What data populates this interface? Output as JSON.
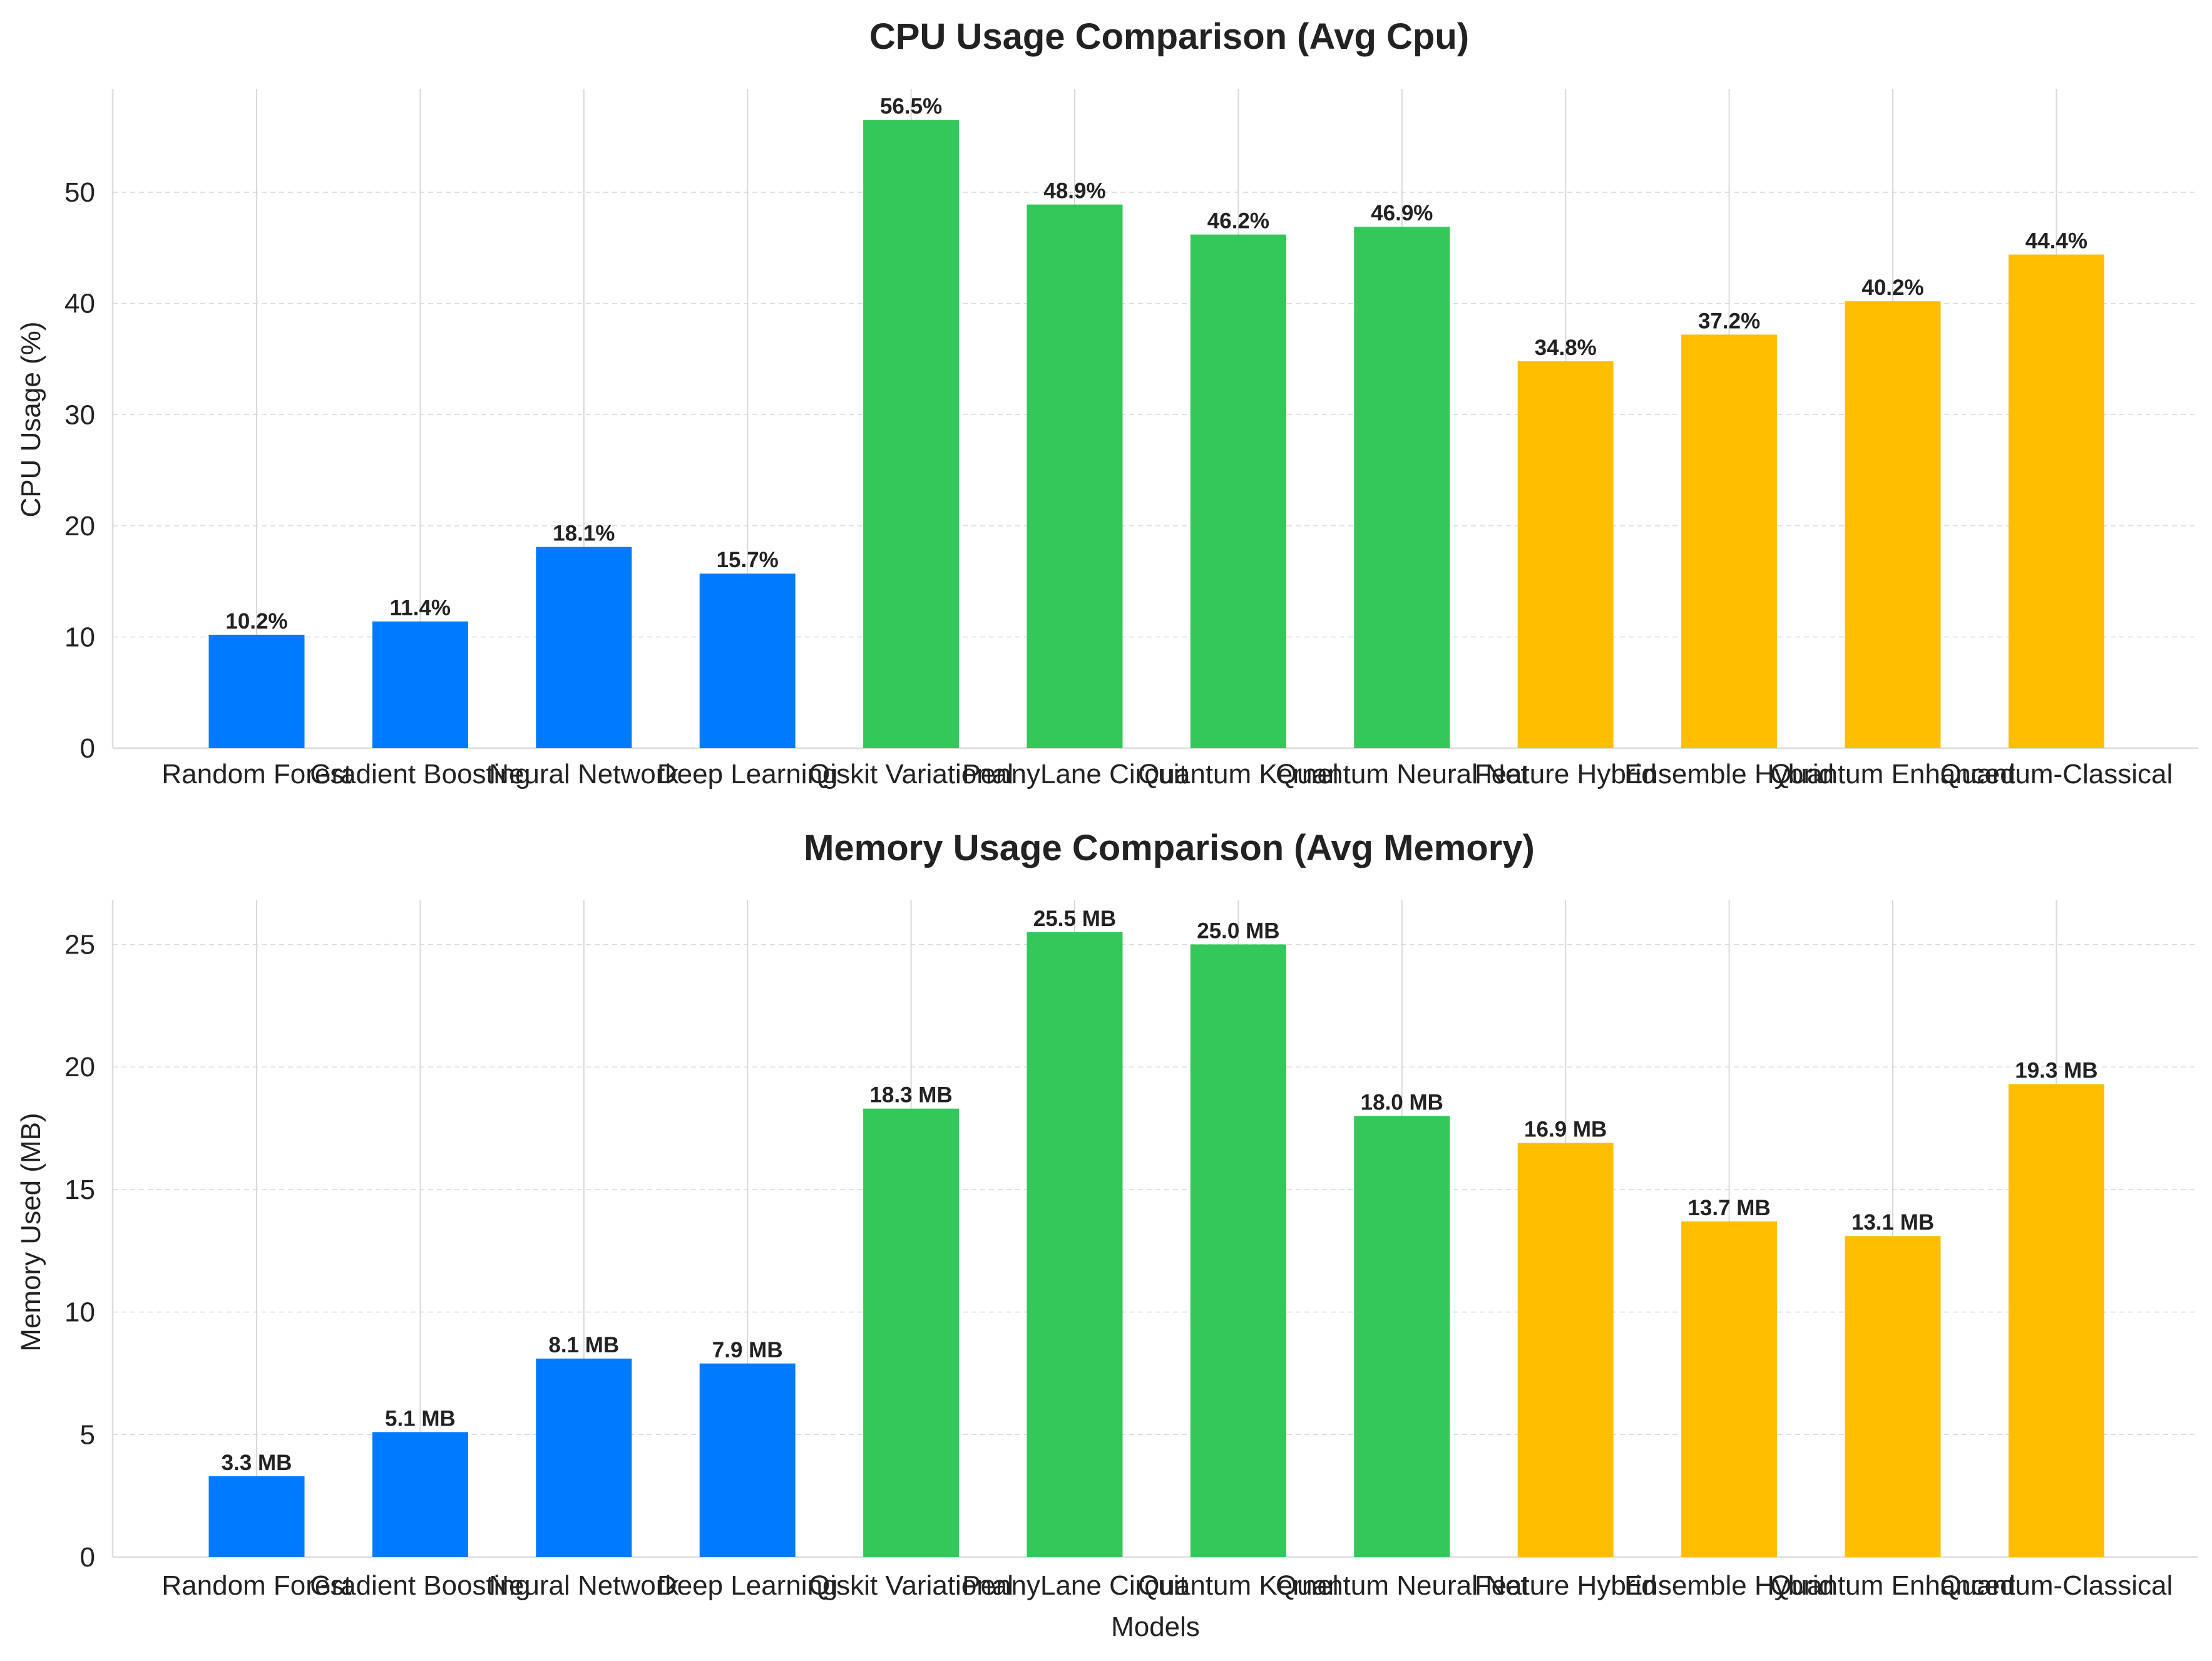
{
  "chart_data": [
    {
      "type": "bar",
      "title": "CPU Usage Comparison (Avg Cpu)",
      "xlabel": "",
      "ylabel": "CPU Usage (%)",
      "categories": [
        "Random Forest",
        "Gradient Boosting",
        "Neural Network",
        "Deep Learning",
        "Qiskit Variational",
        "PennyLane Circuit",
        "Quantum Kernel",
        "Quantum Neural Net",
        "Feature Hybrid",
        "Ensemble Hybrid",
        "Quantum Enhanced",
        "Quantum-Classical"
      ],
      "values": [
        10.2,
        11.4,
        18.1,
        15.7,
        56.5,
        48.9,
        46.2,
        46.9,
        34.8,
        37.2,
        40.2,
        44.4
      ],
      "data_labels": [
        "10.2%",
        "11.4%",
        "18.1%",
        "15.7%",
        "56.5%",
        "48.9%",
        "46.2%",
        "46.9%",
        "34.8%",
        "37.2%",
        "40.2%",
        "44.4%"
      ],
      "colors": [
        "#007bff",
        "#007bff",
        "#007bff",
        "#007bff",
        "#34c759",
        "#34c759",
        "#34c759",
        "#34c759",
        "#ffbf00",
        "#ffbf00",
        "#ffbf00",
        "#ffbf00"
      ],
      "ylim": [
        0,
        59.3
      ],
      "yticks": [
        0,
        10,
        20,
        30,
        40,
        50
      ],
      "grid": true
    },
    {
      "type": "bar",
      "title": "Memory Usage Comparison (Avg Memory)",
      "xlabel": "Models",
      "ylabel": "Memory Used (MB)",
      "categories": [
        "Random Forest",
        "Gradient Boosting",
        "Neural Network",
        "Deep Learning",
        "Qiskit Variational",
        "PennyLane Circuit",
        "Quantum Kernel",
        "Quantum Neural Net",
        "Feature Hybrid",
        "Ensemble Hybrid",
        "Quantum Enhanced",
        "Quantum-Classical"
      ],
      "values": [
        3.3,
        5.1,
        8.1,
        7.9,
        18.3,
        25.5,
        25.0,
        18.0,
        16.9,
        13.7,
        13.1,
        19.3
      ],
      "data_labels": [
        "3.3 MB",
        "5.1 MB",
        "8.1 MB",
        "7.9 MB",
        "18.3 MB",
        "25.5 MB",
        "25.0 MB",
        "18.0 MB",
        "16.9 MB",
        "13.7 MB",
        "13.1 MB",
        "19.3 MB"
      ],
      "colors": [
        "#007bff",
        "#007bff",
        "#007bff",
        "#007bff",
        "#34c759",
        "#34c759",
        "#34c759",
        "#34c759",
        "#ffbf00",
        "#ffbf00",
        "#ffbf00",
        "#ffbf00"
      ],
      "ylim": [
        0,
        26.8
      ],
      "yticks": [
        0,
        5,
        10,
        15,
        20,
        25
      ],
      "grid": true
    }
  ]
}
